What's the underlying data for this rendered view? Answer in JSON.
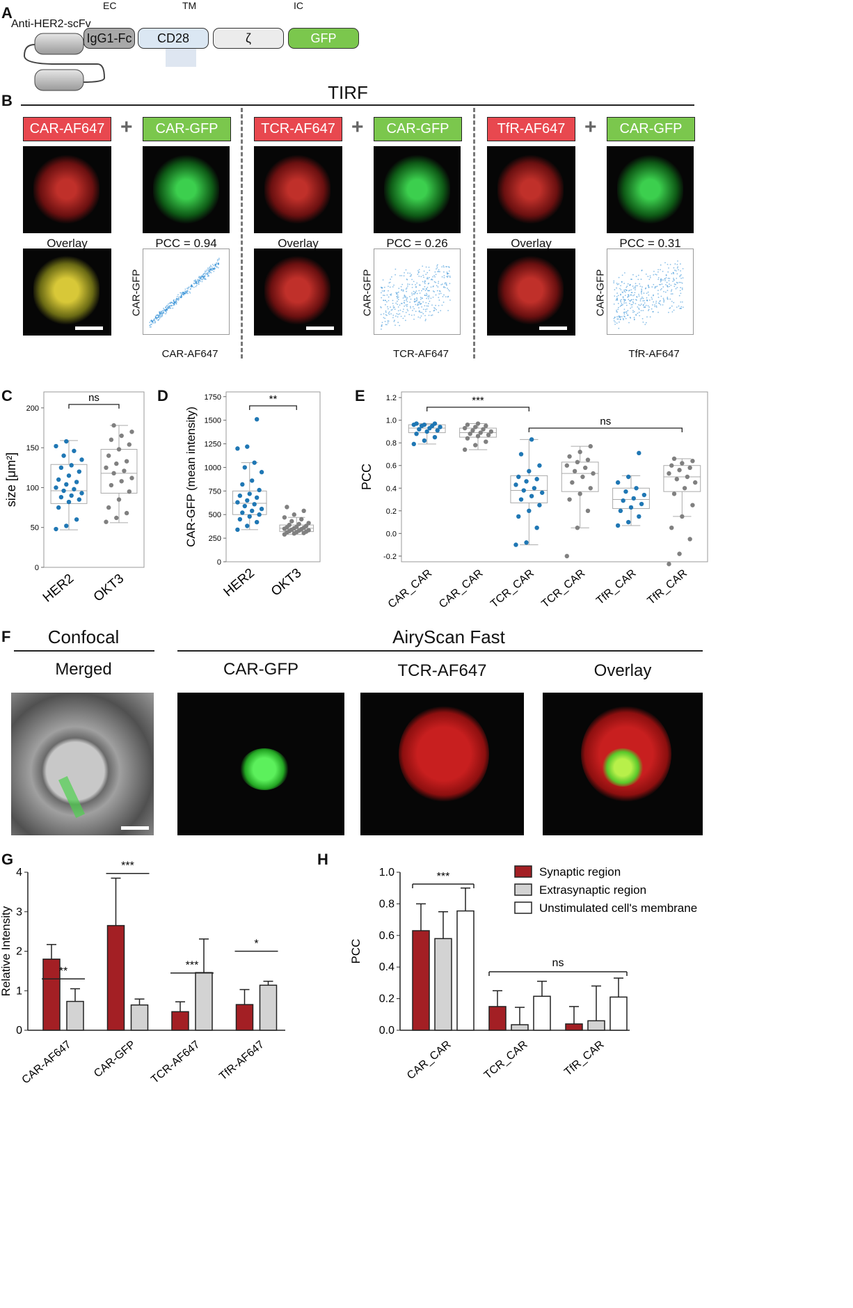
{
  "panels": {
    "A": "A",
    "B": "B",
    "C": "C",
    "D": "D",
    "E": "E",
    "F": "F",
    "G": "G",
    "H": "H"
  },
  "panelA": {
    "domain_ec": "EC",
    "domain_tm": "TM",
    "domain_ic": "IC",
    "scfv": "Anti-HER2-scFv",
    "igg": "IgG1-Fc",
    "cd28": "CD28",
    "zeta": "ζ",
    "gfp": "GFP"
  },
  "panelB": {
    "title": "TIRF",
    "groups": [
      {
        "red": "CAR-AF647",
        "green": "CAR-GFP",
        "overlay": "Overlay",
        "pcc": "PCC = 0.94",
        "xlabel": "CAR-AF647",
        "ylabel": "CAR-GFP"
      },
      {
        "red": "TCR-AF647",
        "green": "CAR-GFP",
        "overlay": "Overlay",
        "pcc": "PCC = 0.26",
        "xlabel": "TCR-AF647",
        "ylabel": "CAR-GFP"
      },
      {
        "red": "TfR-AF647",
        "green": "CAR-GFP",
        "overlay": "Overlay",
        "pcc": "PCC = 0.31",
        "xlabel": "TfR-AF647",
        "ylabel": "CAR-GFP"
      }
    ],
    "plus": "+"
  },
  "panelF": {
    "confocal": "Confocal",
    "airyscan": "AiryScan Fast",
    "merged": "Merged",
    "gfp": "CAR-GFP",
    "tcr": "TCR-AF647",
    "overlay": "Overlay"
  },
  "colors": {
    "red": "#e8484f",
    "green": "#7bc74d",
    "blue": "#1f77b4",
    "grey": "#808080",
    "darkred": "#a31f24",
    "lightgrey": "#d3d3d3"
  },
  "chart_data": [
    {
      "panel": "C",
      "type": "box",
      "categories": [
        "HER2",
        "OKT3"
      ],
      "ylabel": "size [μm²]",
      "ylim": [
        0,
        220
      ],
      "yticks": [
        0,
        50,
        100,
        150,
        200
      ],
      "boxes": [
        {
          "q1": 80,
          "median": 96,
          "q3": 129,
          "whislo": 47,
          "whishi": 159
        },
        {
          "q1": 93,
          "median": 118,
          "q3": 148,
          "whislo": 56,
          "whishi": 178
        }
      ],
      "points": [
        [
          48,
          52,
          60,
          75,
          82,
          85,
          88,
          90,
          93,
          96,
          98,
          100,
          104,
          107,
          110,
          115,
          120,
          125,
          128,
          135,
          140,
          146,
          152,
          158
        ],
        [
          57,
          62,
          68,
          75,
          85,
          95,
          103,
          108,
          112,
          118,
          121,
          125,
          130,
          133,
          140,
          148,
          154,
          160,
          165,
          170,
          178
        ]
      ],
      "significance": [
        {
          "pair": [
            0,
            1
          ],
          "label": "ns"
        }
      ]
    },
    {
      "panel": "D",
      "type": "box",
      "categories": [
        "HER2",
        "OKT3"
      ],
      "ylabel": "CAR-GFP (mean intensity)",
      "ylim": [
        0,
        1800
      ],
      "yticks": [
        0,
        250,
        500,
        750,
        1000,
        1250,
        1500,
        1750
      ],
      "boxes": [
        {
          "q1": 500,
          "median": 620,
          "q3": 750,
          "whislo": 340,
          "whishi": 1050
        },
        {
          "q1": 320,
          "median": 355,
          "q3": 390,
          "whislo": 290,
          "whishi": 470
        }
      ],
      "points": [
        [
          340,
          380,
          420,
          450,
          480,
          500,
          520,
          540,
          560,
          590,
          610,
          630,
          650,
          680,
          700,
          720,
          760,
          820,
          860,
          950,
          1000,
          1050,
          1200,
          1220,
          1510
        ],
        [
          290,
          300,
          305,
          310,
          315,
          320,
          325,
          330,
          335,
          340,
          345,
          350,
          355,
          360,
          365,
          370,
          380,
          390,
          400,
          410,
          430,
          450,
          470,
          500,
          540,
          580
        ]
      ],
      "significance": [
        {
          "pair": [
            0,
            1
          ],
          "label": "**"
        }
      ]
    },
    {
      "panel": "E",
      "type": "box",
      "categories": [
        "CAR_CAR",
        "CAR_CAR",
        "TCR_CAR",
        "TCR_CAR",
        "TfR_CAR",
        "TfR_CAR"
      ],
      "ylabel": "PCC",
      "ylim": [
        -0.25,
        1.25
      ],
      "yticks": [
        -0.2,
        0.0,
        0.2,
        0.4,
        0.6,
        0.8,
        1.0,
        1.2
      ],
      "boxes": [
        {
          "q1": 0.89,
          "median": 0.93,
          "q3": 0.96,
          "whislo": 0.79,
          "whishi": 0.97
        },
        {
          "q1": 0.85,
          "median": 0.89,
          "q3": 0.93,
          "whislo": 0.74,
          "whishi": 0.97
        },
        {
          "q1": 0.27,
          "median": 0.38,
          "q3": 0.51,
          "whislo": -0.1,
          "whishi": 0.83
        },
        {
          "q1": 0.37,
          "median": 0.53,
          "q3": 0.63,
          "whislo": 0.05,
          "whishi": 0.77
        },
        {
          "q1": 0.22,
          "median": 0.3,
          "q3": 0.4,
          "whislo": 0.07,
          "whishi": 0.51
        },
        {
          "q1": 0.37,
          "median": 0.5,
          "q3": 0.6,
          "whislo": 0.15,
          "whishi": 0.66
        }
      ],
      "points": [
        [
          0.79,
          0.82,
          0.85,
          0.88,
          0.9,
          0.91,
          0.92,
          0.93,
          0.94,
          0.95,
          0.95,
          0.96,
          0.96,
          0.97,
          0.97
        ],
        [
          0.74,
          0.78,
          0.81,
          0.84,
          0.86,
          0.87,
          0.88,
          0.89,
          0.9,
          0.91,
          0.92,
          0.93,
          0.94,
          0.95,
          0.96,
          0.97
        ],
        [
          -0.1,
          -0.08,
          0.05,
          0.15,
          0.2,
          0.25,
          0.3,
          0.33,
          0.36,
          0.38,
          0.4,
          0.43,
          0.46,
          0.48,
          0.5,
          0.55,
          0.6,
          0.7,
          0.83
        ],
        [
          -0.2,
          0.05,
          0.2,
          0.3,
          0.35,
          0.4,
          0.45,
          0.5,
          0.53,
          0.55,
          0.58,
          0.6,
          0.63,
          0.65,
          0.68,
          0.72,
          0.77
        ],
        [
          0.07,
          0.1,
          0.15,
          0.2,
          0.23,
          0.26,
          0.29,
          0.31,
          0.34,
          0.37,
          0.4,
          0.45,
          0.5,
          0.71
        ],
        [
          -0.27,
          -0.18,
          -0.05,
          0.05,
          0.15,
          0.25,
          0.35,
          0.4,
          0.45,
          0.48,
          0.5,
          0.53,
          0.56,
          0.58,
          0.6,
          0.62,
          0.64,
          0.66
        ]
      ],
      "pointColors": [
        "#1f77b4",
        "#808080",
        "#1f77b4",
        "#808080",
        "#1f77b4",
        "#808080"
      ],
      "significance": [
        {
          "pair": [
            0,
            2
          ],
          "label": "***"
        },
        {
          "pair": [
            2,
            5
          ],
          "label": "ns"
        }
      ]
    },
    {
      "panel": "G",
      "type": "bar",
      "categories": [
        "CAR-AF647",
        "CAR-GFP",
        "TCR-AF647",
        "TfR-AF647"
      ],
      "ylabel": "Relative Intensity",
      "ylim": [
        0,
        4
      ],
      "yticks": [
        0,
        1,
        2,
        3,
        4
      ],
      "series": [
        {
          "color": "#a31f24",
          "values": [
            1.8,
            2.65,
            0.47,
            0.65
          ],
          "errors": [
            0.37,
            1.2,
            0.25,
            0.38
          ]
        },
        {
          "color": "#d3d3d3",
          "values": [
            0.73,
            0.64,
            1.46,
            1.14
          ],
          "errors": [
            0.32,
            0.15,
            0.85,
            0.1
          ]
        }
      ],
      "significance": [
        {
          "group": 0,
          "label": "**"
        },
        {
          "group": 1,
          "label": "***"
        },
        {
          "group": 2,
          "label": "***"
        },
        {
          "group": 3,
          "label": "*"
        }
      ]
    },
    {
      "panel": "H",
      "type": "bar",
      "categories": [
        "CAR_CAR",
        "TCR_CAR",
        "TfR_CAR"
      ],
      "ylabel": "PCC",
      "ylim": [
        0,
        1.0
      ],
      "yticks": [
        0.0,
        0.2,
        0.4,
        0.6,
        0.8,
        1.0
      ],
      "series": [
        {
          "name": "Synaptic region",
          "color": "#a31f24",
          "values": [
            0.63,
            0.15,
            0.04
          ],
          "errors": [
            0.17,
            0.1,
            0.11
          ]
        },
        {
          "name": "Extrasynaptic region",
          "color": "#d3d3d3",
          "values": [
            0.58,
            0.035,
            0.06
          ],
          "errors": [
            0.17,
            0.11,
            0.22
          ]
        },
        {
          "name": "Unstimulated cell's membrane",
          "color": "#ffffff",
          "values": [
            0.755,
            0.215,
            0.21
          ],
          "errors": [
            0.145,
            0.095,
            0.12
          ]
        }
      ],
      "significance": [
        {
          "groups": [
            0,
            0
          ],
          "label": "***"
        },
        {
          "groups": [
            1,
            2
          ],
          "label": "ns"
        }
      ]
    }
  ]
}
